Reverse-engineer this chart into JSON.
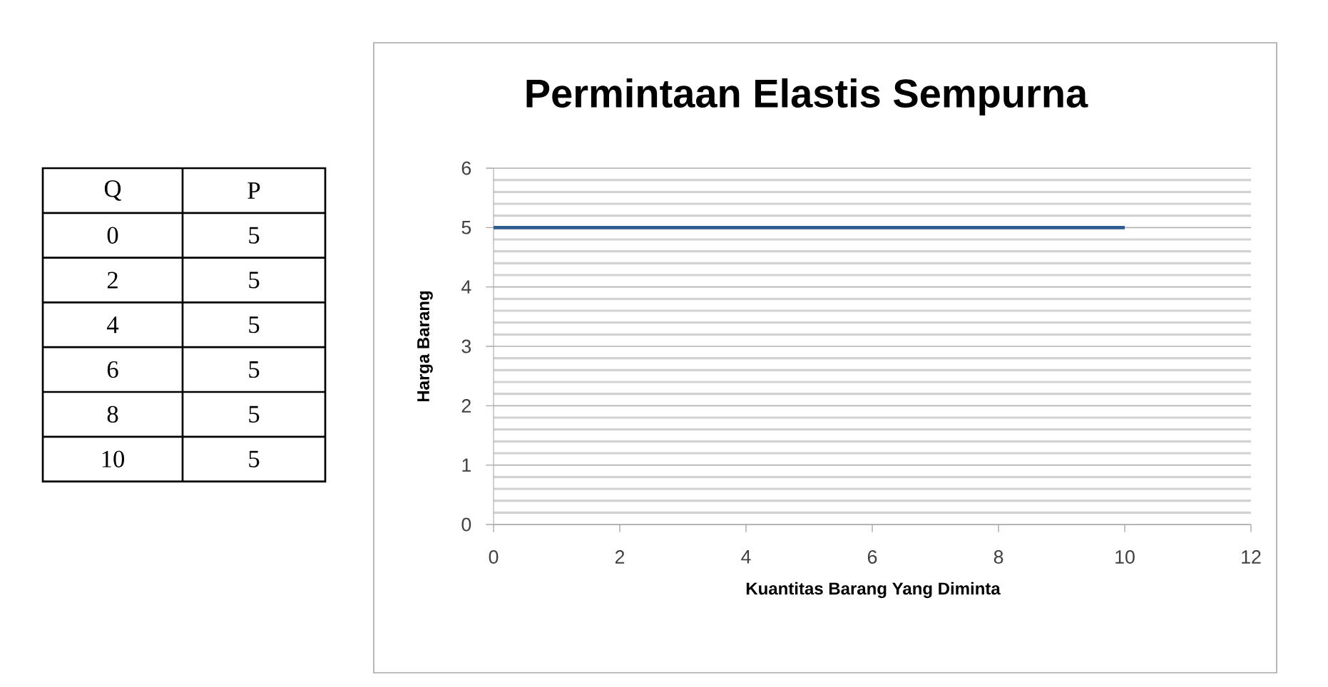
{
  "chart_data": {
    "type": "line",
    "title": "Permintaan Elastis Sempurna",
    "xlabel": "Kuantitas Barang Yang Diminta",
    "ylabel": "Harga Barang",
    "x": [
      0,
      10
    ],
    "series": [
      {
        "color": "#2b5b8f",
        "values": [
          5,
          5
        ]
      }
    ],
    "xlim": [
      0,
      12
    ],
    "xticks": [
      0,
      2,
      4,
      6,
      8,
      10,
      12
    ],
    "ylim": [
      0,
      6
    ],
    "yticks": [
      0,
      1,
      2,
      3,
      4,
      5,
      6
    ],
    "grid": "y",
    "annotations": [
      "Q",
      "P",
      "0",
      "5",
      "2",
      "5",
      "4",
      "5",
      "6",
      "5",
      "8",
      "5",
      "10",
      "5"
    ]
  }
}
